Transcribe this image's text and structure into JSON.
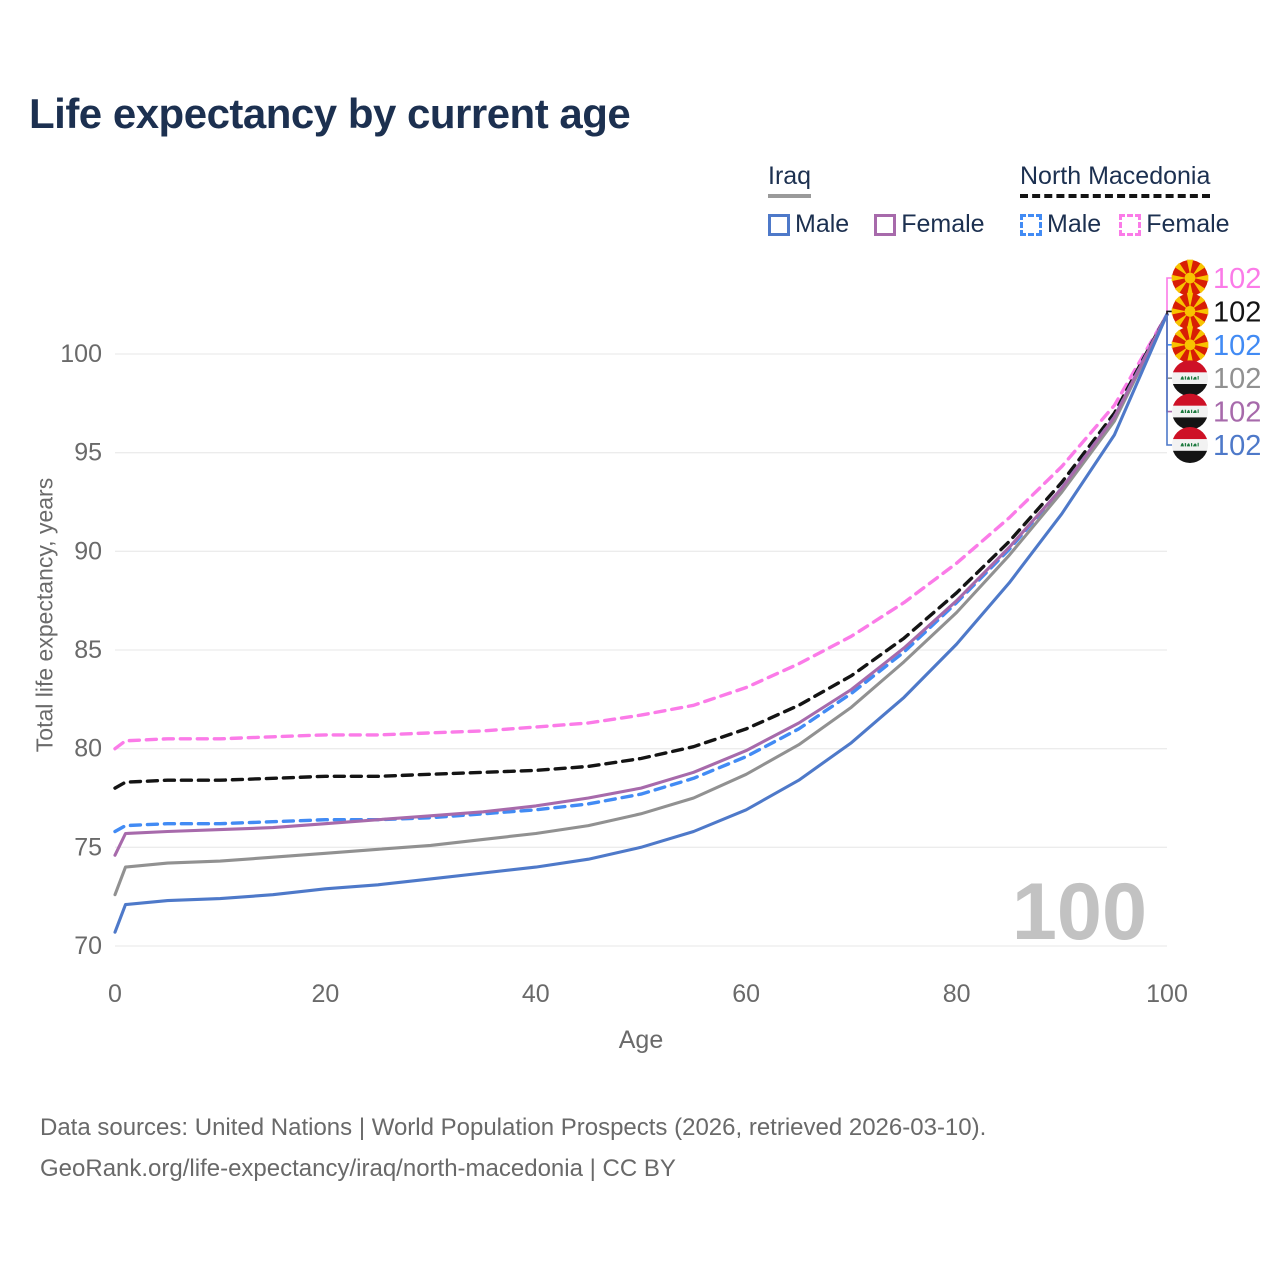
{
  "title": "Life expectancy by current age",
  "legend": {
    "groups": [
      {
        "label": "Iraq",
        "underline_style": "solid",
        "underline_color": "#9a9a9a",
        "items": [
          {
            "label": "Male",
            "color": "#4e79c9",
            "dash": false
          },
          {
            "label": "Female",
            "color": "#a76aab",
            "dash": false
          }
        ]
      },
      {
        "label": "North Macedonia",
        "underline_style": "dashed",
        "underline_color": "#141414",
        "items": [
          {
            "label": "Male",
            "color": "#428bf4",
            "dash": true
          },
          {
            "label": "Female",
            "color": "#fb7be8",
            "dash": true
          }
        ]
      }
    ]
  },
  "chart_data": {
    "type": "line",
    "title": "Life expectancy by current age",
    "xlabel": "Age",
    "ylabel": "Total life expectancy, years",
    "xlim": [
      0,
      100
    ],
    "ylim": [
      70,
      102
    ],
    "xticks": [
      0,
      20,
      40,
      60,
      80,
      100
    ],
    "yticks": [
      70,
      75,
      80,
      85,
      90,
      95,
      100
    ],
    "grid": "horizontal",
    "x": [
      0,
      1,
      5,
      10,
      15,
      20,
      25,
      30,
      35,
      40,
      45,
      50,
      55,
      60,
      65,
      70,
      75,
      80,
      85,
      90,
      95,
      100
    ],
    "series": [
      {
        "name": "North Macedonia — Female",
        "country": "North Macedonia",
        "sex": "Female",
        "color": "#fb7be8",
        "dash": true,
        "flag": "north-macedonia",
        "end_label": "102",
        "values": [
          80.0,
          80.4,
          80.5,
          80.5,
          80.6,
          80.7,
          80.7,
          80.8,
          80.9,
          81.1,
          81.3,
          81.7,
          82.2,
          83.1,
          84.3,
          85.7,
          87.4,
          89.4,
          91.7,
          94.3,
          97.4,
          102
        ]
      },
      {
        "name": "North Macedonia — All",
        "country": "North Macedonia",
        "sex": "All",
        "color": "#141414",
        "dash": true,
        "flag": "north-macedonia",
        "end_label": "102",
        "values": [
          78.0,
          78.3,
          78.4,
          78.4,
          78.5,
          78.6,
          78.6,
          78.7,
          78.8,
          78.9,
          79.1,
          79.5,
          80.1,
          81.0,
          82.2,
          83.7,
          85.6,
          87.9,
          90.5,
          93.5,
          97.0,
          102
        ]
      },
      {
        "name": "North Macedonia — Male",
        "country": "North Macedonia",
        "sex": "Male",
        "color": "#428bf4",
        "dash": true,
        "flag": "north-macedonia",
        "end_label": "102",
        "values": [
          75.8,
          76.1,
          76.2,
          76.2,
          76.3,
          76.4,
          76.4,
          76.5,
          76.7,
          76.9,
          77.2,
          77.7,
          78.5,
          79.6,
          81.0,
          82.8,
          84.9,
          87.4,
          90.1,
          93.2,
          96.8,
          102
        ]
      },
      {
        "name": "Iraq — All",
        "country": "Iraq",
        "sex": "All",
        "color": "#919191",
        "dash": false,
        "flag": "iraq",
        "end_label": "102",
        "values": [
          72.6,
          74.0,
          74.2,
          74.3,
          74.5,
          74.7,
          74.9,
          75.1,
          75.4,
          75.7,
          76.1,
          76.7,
          77.5,
          78.7,
          80.2,
          82.1,
          84.4,
          86.9,
          89.8,
          93.0,
          96.6,
          102
        ]
      },
      {
        "name": "Iraq — Female",
        "country": "Iraq",
        "sex": "Female",
        "color": "#a76aab",
        "dash": false,
        "flag": "iraq",
        "end_label": "102",
        "values": [
          74.6,
          75.7,
          75.8,
          75.9,
          76.0,
          76.2,
          76.4,
          76.6,
          76.8,
          77.1,
          77.5,
          78.0,
          78.8,
          79.9,
          81.3,
          83.0,
          85.1,
          87.5,
          90.2,
          93.2,
          96.8,
          102
        ]
      },
      {
        "name": "Iraq — Male",
        "country": "Iraq",
        "sex": "Male",
        "color": "#4e79c9",
        "dash": false,
        "flag": "iraq",
        "end_label": "102",
        "values": [
          70.7,
          72.1,
          72.3,
          72.4,
          72.6,
          72.9,
          73.1,
          73.4,
          73.7,
          74.0,
          74.4,
          75.0,
          75.8,
          76.9,
          78.4,
          80.3,
          82.6,
          85.3,
          88.4,
          91.9,
          95.9,
          102
        ]
      }
    ]
  },
  "watermark": "100",
  "footer": {
    "line1": "Data sources: United Nations | World Population Prospects (2026, retrieved 2026-03-10).",
    "line2": "GeoRank.org/life-expectancy/iraq/north-macedonia | CC BY"
  }
}
